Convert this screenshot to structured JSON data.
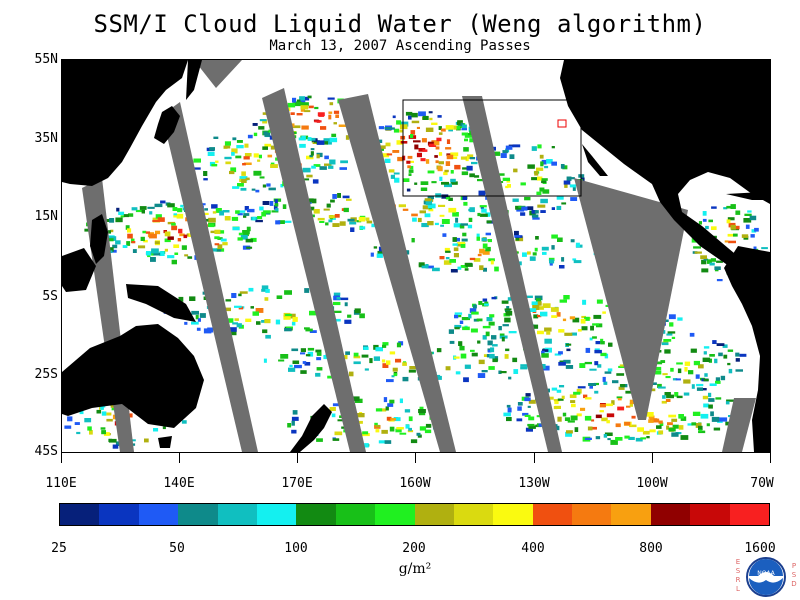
{
  "title": "SSM/I Cloud Liquid Water (Weng algorithm)",
  "subtitle": "March 13, 2007  Ascending Passes",
  "lat_labels": [
    "55N",
    "35N",
    "15N",
    "5S",
    "25S",
    "45S"
  ],
  "lon_labels": [
    "110E",
    "140E",
    "170E",
    "160W",
    "130W",
    "100W",
    "70W"
  ],
  "colorbar": {
    "colors": [
      "#06207a",
      "#0a35c0",
      "#1f5af5",
      "#0e8a8a",
      "#10bfc0",
      "#14f0f0",
      "#128a12",
      "#18c018",
      "#20f020",
      "#b0b010",
      "#dada10",
      "#fafa10",
      "#f05010",
      "#f57a10",
      "#f8a010",
      "#900000",
      "#c80808",
      "#f82020"
    ],
    "labels": [
      "25",
      "50",
      "100",
      "200",
      "400",
      "800",
      "1600"
    ],
    "unit": "g/m²"
  },
  "logo": {
    "text": "NOAA",
    "left_letters": "ESRL",
    "right_letters": "PSD"
  }
}
